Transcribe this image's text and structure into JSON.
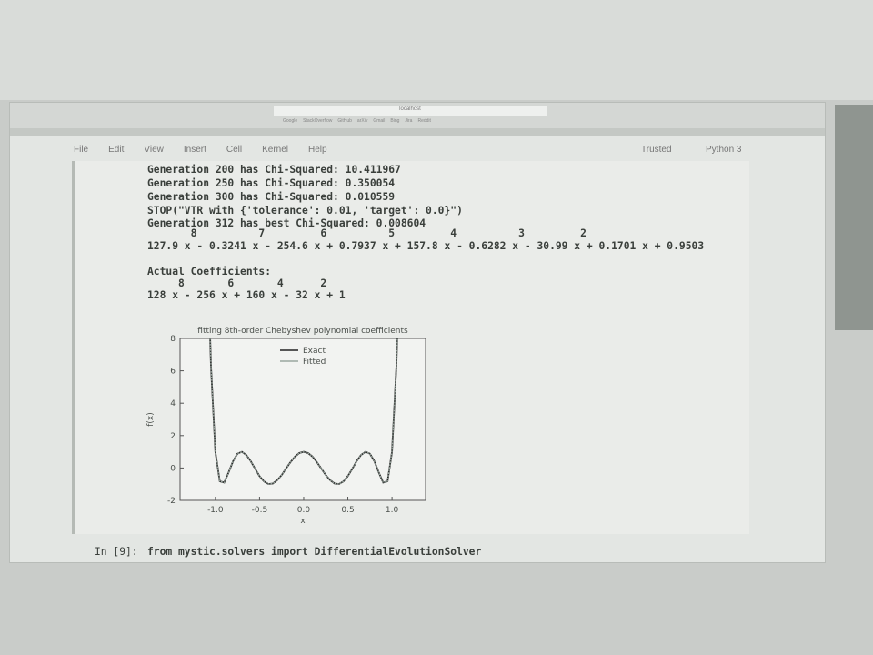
{
  "browser": {
    "address": "localhost",
    "bookmarks": [
      "Google",
      "StackOverflow",
      "GitHub",
      "arXiv",
      "Gmail",
      "Bing",
      "Jira",
      "Reddit"
    ]
  },
  "notebook": {
    "menu": [
      "File",
      "Edit",
      "View",
      "Insert",
      "Cell",
      "Kernel",
      "Help"
    ],
    "trusted": "Trusted",
    "kernel": "Python 3"
  },
  "output": {
    "lines": [
      "Generation 200 has Chi-Squared: 10.411967",
      "Generation 250 has Chi-Squared: 0.350054",
      "Generation 300 has Chi-Squared: 0.010559",
      "STOP(\"VTR with {'tolerance': 0.01, 'target': 0.0}\")",
      "Generation 312 has best Chi-Squared: 0.008604",
      "       8          7         6          5         4          3         2",
      "127.9 x - 0.3241 x - 254.6 x + 0.7937 x + 157.8 x - 0.6282 x - 30.99 x + 0.1701 x + 0.9503"
    ],
    "actual": [
      "Actual Coefficients:",
      "     8       6       4      2",
      "128 x - 256 x + 160 x - 32 x + 1"
    ]
  },
  "plot": {
    "type": "line",
    "title": "fitting 8th-order Chebyshev polynomial coefficients",
    "xlabel": "x",
    "ylabel": "f(x)",
    "x": [
      -1.08,
      -1.05,
      -1.0,
      -0.95,
      -0.9,
      -0.85,
      -0.8,
      -0.75,
      -0.7,
      -0.65,
      -0.6,
      -0.55,
      -0.5,
      -0.45,
      -0.4,
      -0.35,
      -0.3,
      -0.25,
      -0.2,
      -0.15,
      -0.1,
      -0.05,
      0,
      0.05,
      0.1,
      0.15,
      0.2,
      0.25,
      0.3,
      0.35,
      0.4,
      0.45,
      0.5,
      0.55,
      0.6,
      0.65,
      0.7,
      0.75,
      0.8,
      0.85,
      0.9,
      0.95,
      1.0,
      1.05,
      1.08
    ],
    "series": [
      {
        "name": "Exact",
        "color": "#222222",
        "values": [
          11.89,
          6.26,
          1,
          -0.82,
          -0.9,
          -0.27,
          0.42,
          0.88,
          1.0,
          0.81,
          0.42,
          -0.05,
          -0.5,
          -0.83,
          -0.99,
          -0.96,
          -0.76,
          -0.44,
          -0.04,
          0.36,
          0.7,
          0.92,
          1,
          0.92,
          0.7,
          0.36,
          -0.04,
          -0.44,
          -0.76,
          -0.96,
          -0.99,
          -0.83,
          -0.5,
          -0.05,
          0.42,
          0.81,
          1.0,
          0.88,
          0.42,
          -0.27,
          -0.9,
          -0.82,
          1,
          6.26,
          11.89
        ]
      },
      {
        "name": "Fitted",
        "color": "#9aa7a0",
        "values": [
          11.89,
          6.26,
          1,
          -0.82,
          -0.9,
          -0.27,
          0.42,
          0.88,
          1.0,
          0.81,
          0.42,
          -0.05,
          -0.5,
          -0.83,
          -0.99,
          -0.96,
          -0.76,
          -0.44,
          -0.04,
          0.36,
          0.7,
          0.92,
          1,
          0.92,
          0.7,
          0.36,
          -0.04,
          -0.44,
          -0.76,
          -0.96,
          -0.99,
          -0.83,
          -0.5,
          -0.05,
          0.42,
          0.81,
          1.0,
          0.88,
          0.42,
          -0.27,
          -0.9,
          -0.82,
          1,
          6.26,
          11.89
        ]
      }
    ],
    "xlim": [
      -1.4,
      1.38
    ],
    "ylim": [
      -2,
      8
    ],
    "xticks": [
      {
        "value": -1,
        "label": "-1.0"
      },
      -0.5,
      {
        "value": 0,
        "label": "0.0"
      },
      0.5,
      {
        "value": 1,
        "label": "1.0"
      }
    ],
    "yticks": [
      -2,
      0,
      2,
      4,
      6,
      8
    ]
  },
  "input": {
    "prompt": "In [9]:",
    "code": "from mystic.solvers import DifferentialEvolutionSolver"
  }
}
